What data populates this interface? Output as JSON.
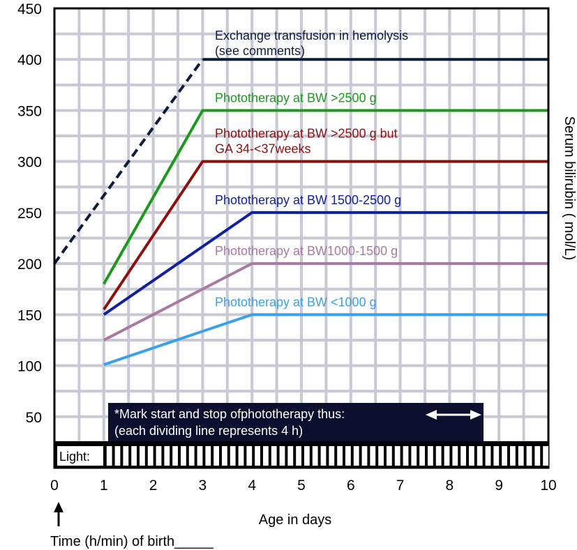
{
  "chart_data": {
    "type": "line",
    "title": "",
    "xlabel": "Age in days",
    "ylabel": "Serum bilirubin ( mol/L)",
    "xlim": [
      0,
      10
    ],
    "ylim": [
      0,
      450
    ],
    "x_ticks": [
      "0",
      "1",
      "2",
      "3",
      "4",
      "5",
      "6",
      "7",
      "8",
      "9",
      "10"
    ],
    "y_ticks": [
      "50",
      "100",
      "150",
      "200",
      "250",
      "300",
      "350",
      "400",
      "450"
    ],
    "grid": true,
    "series": [
      {
        "name": "Exchange transfusion in hemolysis",
        "note": "(see comments)",
        "color": "#0d1b3e",
        "dashed_until_x": 3,
        "points": [
          [
            0,
            200
          ],
          [
            3,
            400
          ],
          [
            10,
            400
          ]
        ]
      },
      {
        "name": "Phototherapy at BW >2500 g",
        "color": "#1a9a1a",
        "points": [
          [
            1,
            180
          ],
          [
            3,
            350
          ],
          [
            10,
            350
          ]
        ]
      },
      {
        "name": "Phototherapy at BW >2500 g but",
        "note": "GA 34-<37weeks",
        "color": "#8b1010",
        "points": [
          [
            1,
            155
          ],
          [
            3,
            300
          ],
          [
            10,
            300
          ]
        ]
      },
      {
        "name": "Phototherapy at BW 1500-2500 g",
        "color": "#1020a0",
        "points": [
          [
            1,
            150
          ],
          [
            4,
            250
          ],
          [
            10,
            250
          ]
        ]
      },
      {
        "name": "Phototherapy at BW1000-1500 g",
        "color": "#a87aa0",
        "points": [
          [
            1,
            125
          ],
          [
            4,
            200
          ],
          [
            10,
            200
          ]
        ]
      },
      {
        "name": "Phototherapy at BW <1000 g",
        "color": "#3aa0e8",
        "points": [
          [
            1,
            101
          ],
          [
            4,
            150
          ],
          [
            10,
            150
          ]
        ]
      }
    ],
    "annotations": {
      "note_line1": "*Mark start and stop ofphototherapy thus:",
      "note_line2": "(each dividing line represents 4 h)",
      "light_label": "Light:",
      "light_strip_divisions_per_day": 6,
      "birth_label": "Time (h/min) of birth_____"
    },
    "colors": {
      "grid": "#c9c9d6",
      "frame": "#000000",
      "note_background": "#0d0f2e",
      "note_text": "#ffffff"
    }
  }
}
